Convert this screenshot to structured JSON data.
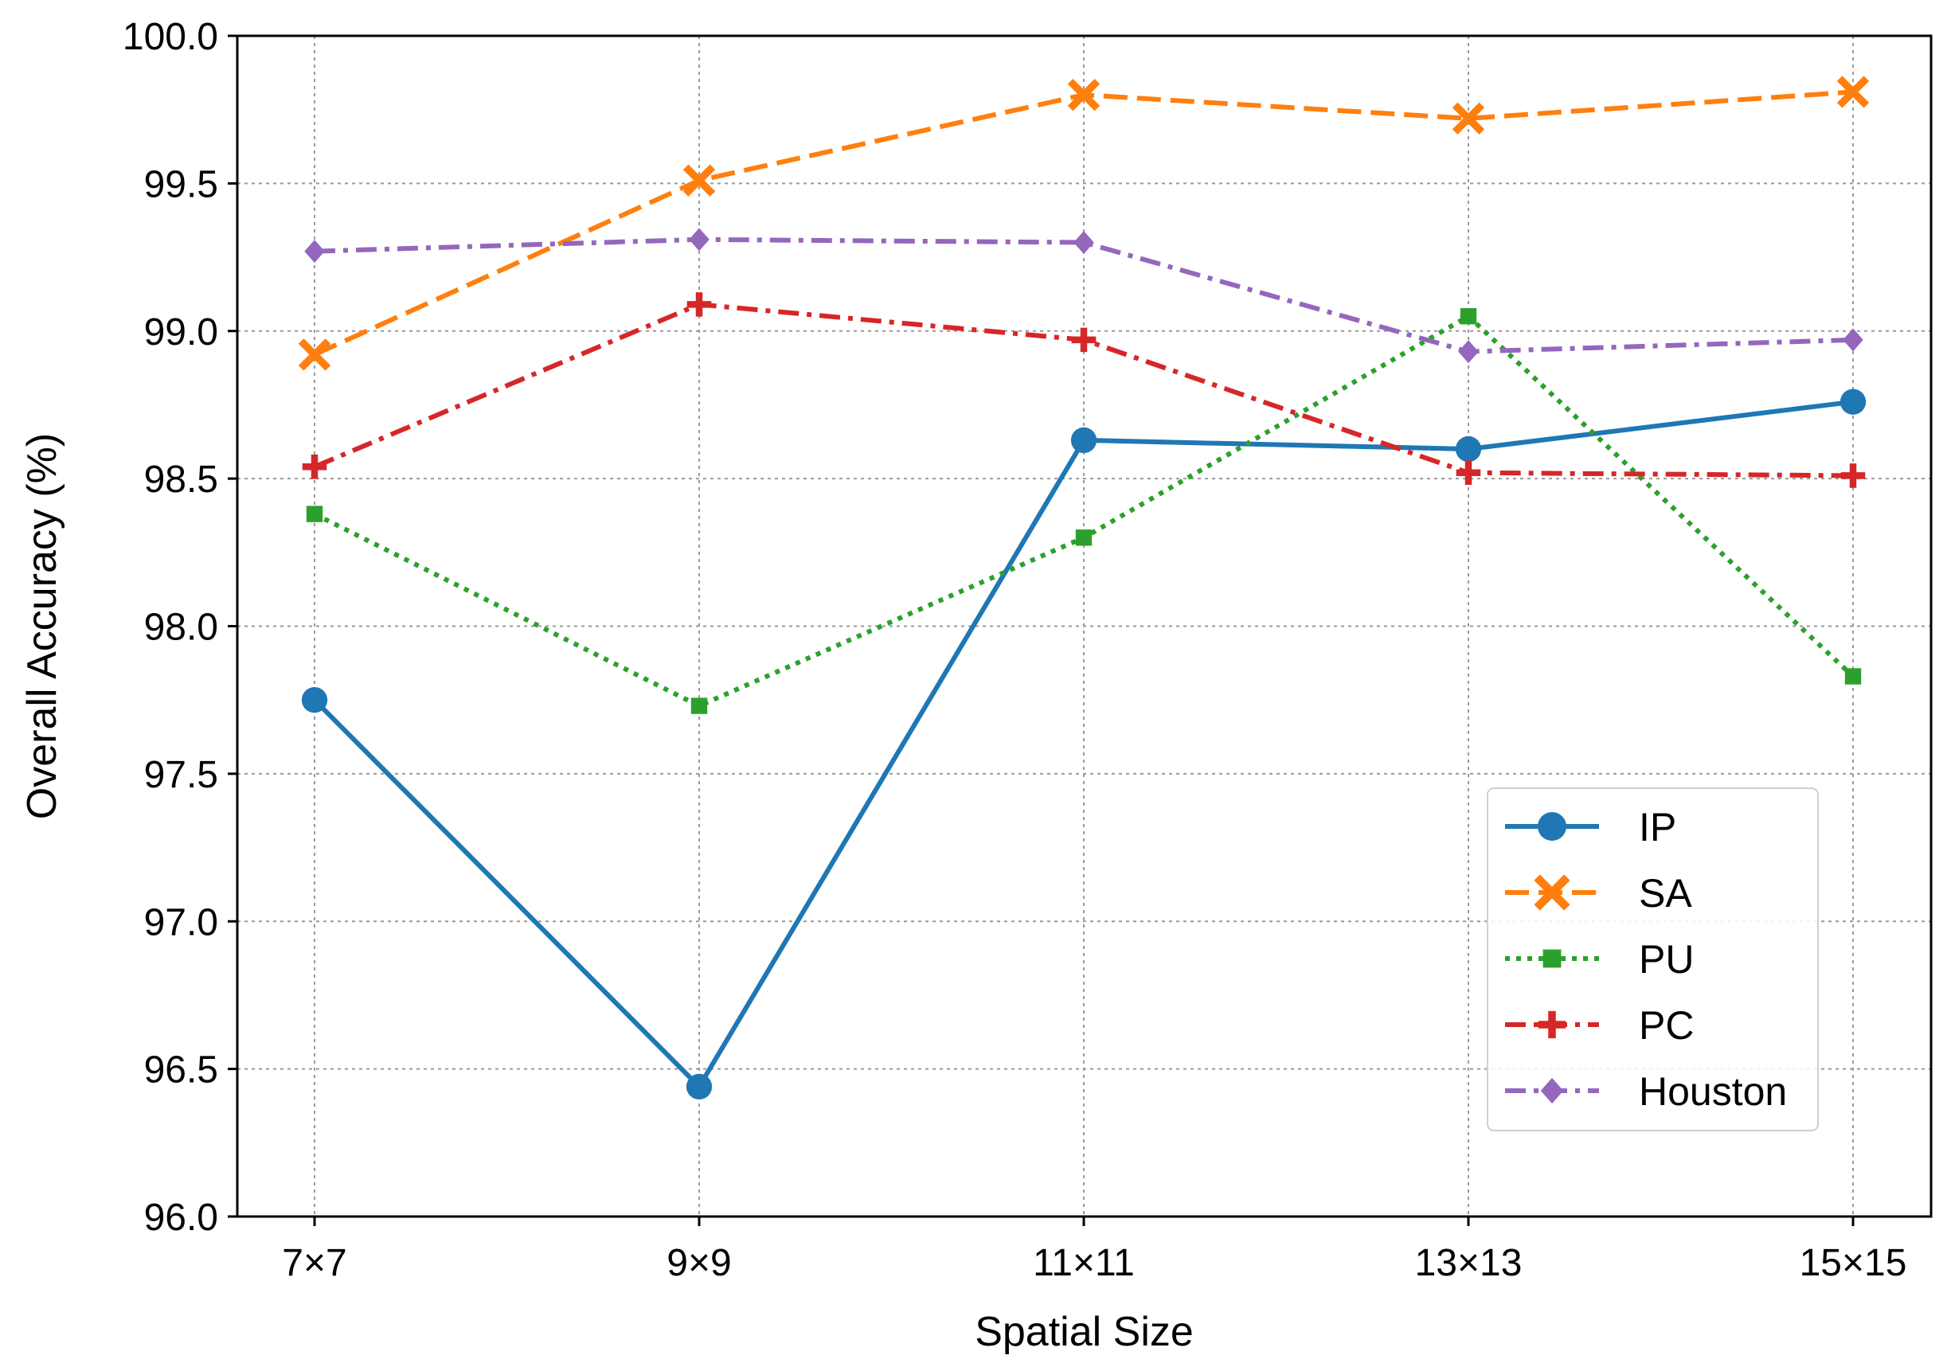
{
  "chart_data": {
    "type": "line",
    "categories": [
      "7×7",
      "9×9",
      "11×11",
      "13×13",
      "15×15"
    ],
    "xlabel": "Spatial Size",
    "ylabel": "Overall Accuracy (%)",
    "ylim": [
      96.0,
      100.0
    ],
    "yticks": [
      "96.0",
      "96.5",
      "97.0",
      "97.5",
      "98.0",
      "98.5",
      "99.0",
      "99.5",
      "100.0"
    ],
    "grid": true,
    "legend": "lower-right",
    "series": [
      {
        "name": "IP",
        "values": [
          97.75,
          96.44,
          98.63,
          98.6,
          98.76
        ],
        "color": "#1f77b4",
        "dash": "solid",
        "marker": "circle"
      },
      {
        "name": "SA",
        "values": [
          98.92,
          99.51,
          99.8,
          99.72,
          99.81
        ],
        "color": "#ff7f0e",
        "dash": "dashed",
        "marker": "x"
      },
      {
        "name": "PU",
        "values": [
          98.38,
          97.73,
          98.3,
          99.05,
          97.83
        ],
        "color": "#2ca02c",
        "dash": "dotted",
        "marker": "square"
      },
      {
        "name": "PC",
        "values": [
          98.54,
          99.09,
          98.97,
          98.52,
          98.51
        ],
        "color": "#d62728",
        "dash": "dashdot",
        "marker": "plus"
      },
      {
        "name": "Houston",
        "values": [
          99.27,
          99.31,
          99.3,
          98.93,
          98.97
        ],
        "color": "#9467bd",
        "dash": "dashdot",
        "marker": "diamond"
      }
    ]
  }
}
